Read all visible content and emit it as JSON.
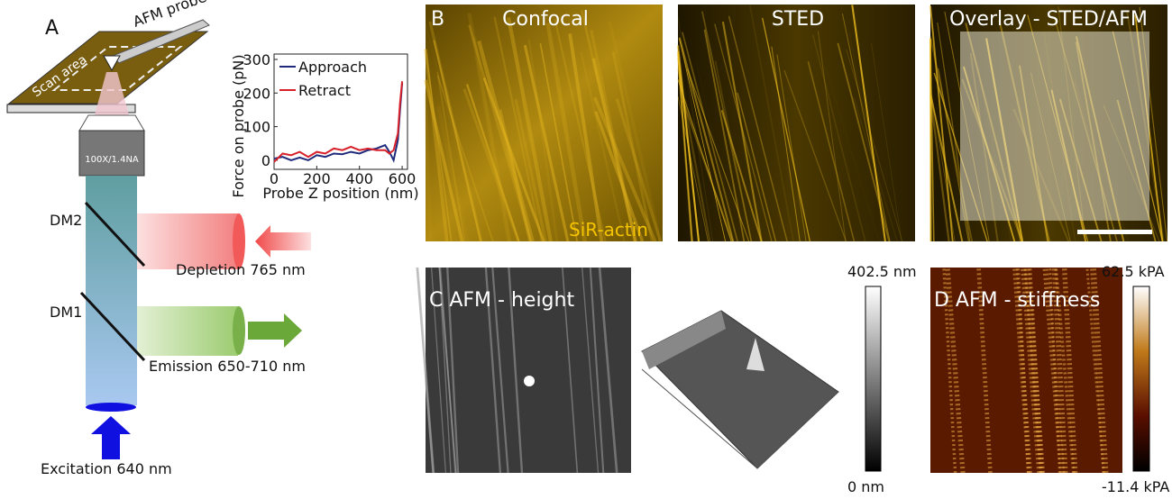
{
  "panel_a": {
    "label": "A",
    "probe_label": "AFM probe",
    "scan_label": "Scan area",
    "objective_label": "100X/1.4NA",
    "dm2": "DM2",
    "dm1": "DM1",
    "depletion": "Depletion 765 nm",
    "emission": "Emission 650-710 nm",
    "excitation": "Excitation 640  nm"
  },
  "chart_data": {
    "type": "line",
    "x_label": "Probe Z position (nm)",
    "y_label": "Force on probe  (pN)",
    "x": [
      0,
      40,
      80,
      120,
      160,
      200,
      240,
      280,
      320,
      360,
      400,
      440,
      480,
      520,
      540,
      560,
      580,
      590,
      600
    ],
    "series": [
      {
        "name": "Approach",
        "color": "#1f2a7a",
        "values": [
          5,
          10,
          0,
          8,
          0,
          15,
          10,
          20,
          18,
          25,
          20,
          30,
          35,
          45,
          25,
          0,
          60,
          150,
          230
        ]
      },
      {
        "name": "Retract",
        "color": "#d8202a",
        "values": [
          -5,
          20,
          15,
          25,
          10,
          25,
          20,
          35,
          30,
          40,
          30,
          35,
          30,
          30,
          20,
          30,
          80,
          170,
          235
        ]
      }
    ],
    "xlim": [
      0,
      625
    ],
    "ylim": [
      -27,
      316
    ],
    "xticks": [
      0,
      200,
      400,
      600
    ],
    "yticks": [
      0,
      100,
      200,
      300
    ]
  },
  "panel_b": {
    "label": "B",
    "confocal": "Confocal",
    "sted": "STED",
    "overlay": "Overlay - STED/AFM",
    "marker": "SiR-actin"
  },
  "panel_c": {
    "title": "C AFM - height",
    "colorbar_max": "402.5 nm",
    "colorbar_min": "0 nm"
  },
  "panel_d": {
    "title": "D AFM - stiffness",
    "colorbar_max": "62.5 kPA",
    "colorbar_min": "-11.4 kPA"
  }
}
